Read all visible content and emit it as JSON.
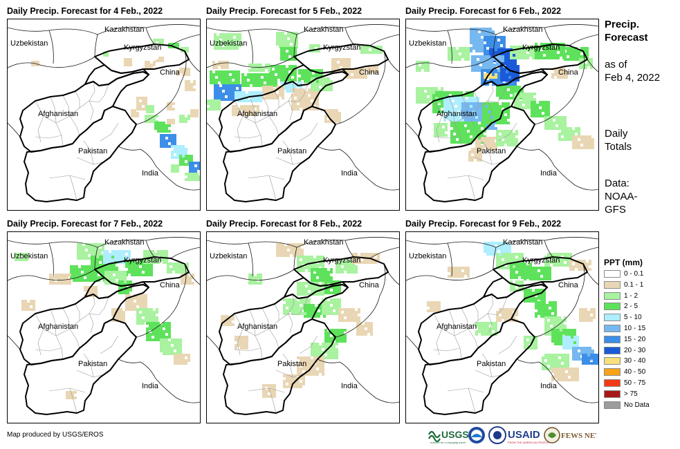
{
  "panels": [
    {
      "title": "Daily Precip. Forecast for 4 Feb., 2022",
      "labels": {
        "kazakhstan": "Kazakhstan",
        "uzbekistan": "Uzbekistan",
        "kyrgyzstan": "Kyrgyzstan",
        "china": "China",
        "afghanistan": "Afghanistan",
        "pakistan": "Pakistan",
        "india": "India"
      }
    },
    {
      "title": "Daily Precip. Forecast for 5 Feb., 2022",
      "labels": {
        "kazakhstan": "Kazakhstan",
        "uzbekistan": "Uzbekistan",
        "kyrgyzstan": "Kyrgyzstan",
        "china": "China",
        "afghanistan": "Afghanistan",
        "pakistan": "Pakistan",
        "india": "India"
      }
    },
    {
      "title": "Daily Precip. Forecast for 6 Feb., 2022",
      "labels": {
        "kazakhstan": "Kazakhstan",
        "uzbekistan": "Uzbekistan",
        "kyrgyzstan": "Kyrgyzstan",
        "china": "China",
        "afghanistan": "Afghanistan",
        "pakistan": "Pakistan",
        "india": "India"
      }
    },
    {
      "title": "Daily Precip. Forecast for 7 Feb., 2022",
      "labels": {
        "kazakhstan": "Kazakhstan",
        "uzbekistan": "Uzbekistan",
        "kyrgyzstan": "Kyrgyzstan",
        "china": "China",
        "afghanistan": "Afghanistan",
        "pakistan": "Pakistan",
        "india": "India"
      }
    },
    {
      "title": "Daily Precip. Forecast for 8 Feb., 2022",
      "labels": {
        "kazakhstan": "Kazakhstan",
        "uzbekistan": "Uzbekistan",
        "kyrgyzstan": "Kyrgyzstan",
        "china": "China",
        "afghanistan": "Afghanistan",
        "pakistan": "Pakistan",
        "india": "India"
      }
    },
    {
      "title": "Daily Precip. Forecast for 9 Feb., 2022",
      "labels": {
        "kazakhstan": "Kazakhstan",
        "uzbekistan": "Uzbekistan",
        "kyrgyzstan": "Kyrgyzstan",
        "china": "China",
        "afghanistan": "Afghanistan",
        "pakistan": "Pakistan",
        "india": "India"
      }
    }
  ],
  "side": {
    "title_line1": "Precip.",
    "title_line2": "Forecast",
    "asof_line1": "as of",
    "asof_line2": "Feb 4, 2022",
    "daily_line1": "Daily",
    "daily_line2": "Totals",
    "data_line1": "Data:",
    "data_line2": "NOAA-",
    "data_line3": "GFS"
  },
  "legend": {
    "title": "PPT (mm)",
    "items": [
      {
        "label": "0 - 0.1",
        "color": "#ffffff"
      },
      {
        "label": "0.1 - 1",
        "color": "#e9d6b4"
      },
      {
        "label": "1 - 2",
        "color": "#a8f2a0"
      },
      {
        "label": "2 - 5",
        "color": "#5ee25c"
      },
      {
        "label": "5 - 10",
        "color": "#aeeeff"
      },
      {
        "label": "10 - 15",
        "color": "#76b8f0"
      },
      {
        "label": "15 - 20",
        "color": "#3d8ee8"
      },
      {
        "label": "20 - 30",
        "color": "#1a5ad8"
      },
      {
        "label": "30 - 40",
        "color": "#f8e07a"
      },
      {
        "label": "40 - 50",
        "color": "#f8a21a"
      },
      {
        "label": "50 - 75",
        "color": "#f43a14"
      },
      {
        "label": "> 75",
        "color": "#a81818"
      },
      {
        "label": "No Data",
        "color": "#9c9c9c"
      }
    ]
  },
  "footer": {
    "credit": "Map produced by USGS/EROS",
    "logo_usgs": "USGS",
    "logo_usgs_sub": "science for a changing world",
    "logo_usaid": "USAID",
    "logo_usaid_sub": "FROM THE AMERICAN PEOPLE",
    "logo_fews": "FEWS NET"
  }
}
